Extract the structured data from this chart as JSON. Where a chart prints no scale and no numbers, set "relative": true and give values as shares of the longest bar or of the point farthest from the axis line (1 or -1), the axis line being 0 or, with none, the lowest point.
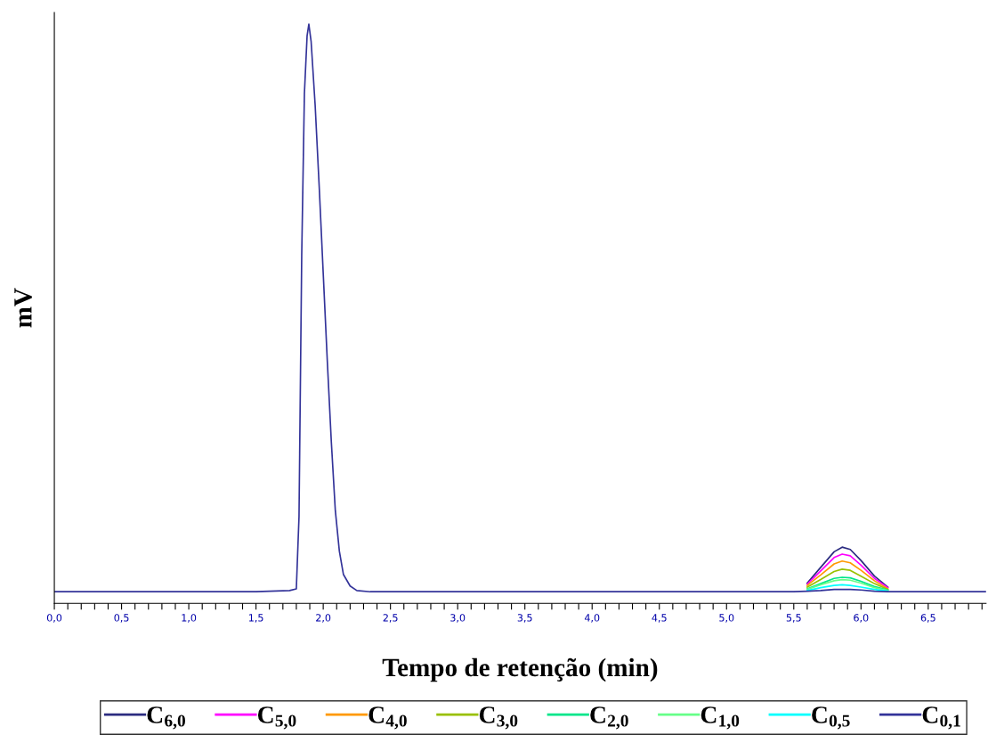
{
  "chart_data": {
    "type": "line",
    "relative": true,
    "xlabel": "Tempo de retenção (min)",
    "ylabel": "mV",
    "x": [
      0,
      1.5,
      1.75,
      1.8,
      1.82,
      1.84,
      1.86,
      1.88,
      1.893,
      1.91,
      1.94,
      1.97,
      2.0,
      2.03,
      2.06,
      2.09,
      2.12,
      2.15,
      2.2,
      2.25,
      2.35,
      2.5,
      5.0,
      5.5,
      5.6,
      5.7,
      5.8,
      5.86,
      5.92,
      6.0,
      6.1,
      6.2,
      6.3,
      6.93
    ],
    "xlim": [
      0,
      6.93
    ],
    "xticks": [
      {
        "value": 0,
        "label": "0,0"
      },
      {
        "value": 0.1,
        "label": null
      },
      {
        "value": 0.2,
        "label": null
      },
      {
        "value": 0.3,
        "label": null
      },
      {
        "value": 0.4,
        "label": null
      },
      {
        "value": 0.5,
        "label": "0,5"
      },
      {
        "value": 0.6,
        "label": null
      },
      {
        "value": 0.7,
        "label": null
      },
      {
        "value": 0.8,
        "label": null
      },
      {
        "value": 0.9,
        "label": null
      },
      {
        "value": 1.0,
        "label": "1,0"
      },
      {
        "value": 1.1,
        "label": null
      },
      {
        "value": 1.2,
        "label": null
      },
      {
        "value": 1.3,
        "label": null
      },
      {
        "value": 1.4,
        "label": null
      },
      {
        "value": 1.5,
        "label": "1,5"
      },
      {
        "value": 1.6,
        "label": null
      },
      {
        "value": 1.7,
        "label": null
      },
      {
        "value": 1.8,
        "label": null
      },
      {
        "value": 1.9,
        "label": null
      },
      {
        "value": 2.0,
        "label": "2,0"
      },
      {
        "value": 2.1,
        "label": null
      },
      {
        "value": 2.2,
        "label": null
      },
      {
        "value": 2.3,
        "label": null
      },
      {
        "value": 2.4,
        "label": null
      },
      {
        "value": 2.5,
        "label": "2,5"
      },
      {
        "value": 2.6,
        "label": null
      },
      {
        "value": 2.7,
        "label": null
      },
      {
        "value": 2.8,
        "label": null
      },
      {
        "value": 2.9,
        "label": null
      },
      {
        "value": 3.0,
        "label": "3,0"
      },
      {
        "value": 3.1,
        "label": null
      },
      {
        "value": 3.2,
        "label": null
      },
      {
        "value": 3.3,
        "label": null
      },
      {
        "value": 3.4,
        "label": null
      },
      {
        "value": 3.5,
        "label": "3,5"
      },
      {
        "value": 3.6,
        "label": null
      },
      {
        "value": 3.7,
        "label": null
      },
      {
        "value": 3.8,
        "label": null
      },
      {
        "value": 3.9,
        "label": null
      },
      {
        "value": 4.0,
        "label": "4,0"
      },
      {
        "value": 4.1,
        "label": null
      },
      {
        "value": 4.2,
        "label": null
      },
      {
        "value": 4.3,
        "label": null
      },
      {
        "value": 4.4,
        "label": null
      },
      {
        "value": 4.5,
        "label": "4,5"
      },
      {
        "value": 4.6,
        "label": null
      },
      {
        "value": 4.7,
        "label": null
      },
      {
        "value": 4.8,
        "label": null
      },
      {
        "value": 4.9,
        "label": null
      },
      {
        "value": 5.0,
        "label": "5,0"
      },
      {
        "value": 5.1,
        "label": null
      },
      {
        "value": 5.2,
        "label": null
      },
      {
        "value": 5.3,
        "label": null
      },
      {
        "value": 5.4,
        "label": null
      },
      {
        "value": 5.5,
        "label": "5,5"
      },
      {
        "value": 5.6,
        "label": null
      },
      {
        "value": 5.7,
        "label": null
      },
      {
        "value": 5.8,
        "label": null
      },
      {
        "value": 5.9,
        "label": null
      },
      {
        "value": 6.0,
        "label": "6,0"
      },
      {
        "value": 6.1,
        "label": null
      },
      {
        "value": 6.2,
        "label": null
      },
      {
        "value": 6.3,
        "label": null
      },
      {
        "value": 6.4,
        "label": null
      },
      {
        "value": 6.5,
        "label": "6,5"
      },
      {
        "value": 6.6,
        "label": null
      },
      {
        "value": 6.7,
        "label": null
      },
      {
        "value": 6.8,
        "label": null
      },
      {
        "value": 6.9,
        "label": null
      }
    ],
    "grid": false,
    "legend": "bottom",
    "marker": "none",
    "line_style": "solid",
    "series": [
      {
        "name": "C$_{6,0}$",
        "color": "#2b2b80",
        "values": [
          null,
          null,
          null,
          null,
          null,
          null,
          null,
          null,
          null,
          null,
          null,
          null,
          null,
          null,
          null,
          null,
          null,
          null,
          null,
          null,
          null,
          null,
          null,
          null,
          0.035,
          0.062,
          0.089,
          0.097,
          0.093,
          0.074,
          0.047,
          0.028,
          null,
          null
        ]
      },
      {
        "name": "C$_{5,0}$",
        "color": "#ff00ff",
        "values": [
          null,
          null,
          null,
          null,
          null,
          null,
          null,
          null,
          null,
          null,
          null,
          null,
          null,
          null,
          null,
          null,
          null,
          null,
          null,
          null,
          null,
          null,
          null,
          null,
          0.033,
          0.056,
          0.079,
          0.085,
          0.082,
          0.066,
          0.043,
          0.027,
          null,
          null
        ]
      },
      {
        "name": "C$_{4,0}$",
        "color": "#ff9900",
        "values": [
          null,
          null,
          null,
          null,
          null,
          null,
          null,
          null,
          null,
          null,
          null,
          null,
          null,
          null,
          null,
          null,
          null,
          null,
          null,
          null,
          null,
          null,
          null,
          null,
          0.031,
          0.049,
          0.068,
          0.073,
          0.07,
          0.057,
          0.039,
          0.025,
          null,
          null
        ]
      },
      {
        "name": "C$_{3,0}$",
        "color": "#99c000",
        "values": [
          null,
          null,
          null,
          null,
          null,
          null,
          null,
          null,
          null,
          null,
          null,
          null,
          null,
          null,
          null,
          null,
          null,
          null,
          null,
          null,
          null,
          null,
          null,
          null,
          0.028,
          0.041,
          0.055,
          0.059,
          0.057,
          0.047,
          0.034,
          0.024,
          null,
          null
        ]
      },
      {
        "name": "C$_{2,0}$",
        "color": "#00e68a",
        "values": [
          null,
          null,
          null,
          null,
          null,
          null,
          null,
          null,
          null,
          null,
          null,
          null,
          null,
          null,
          null,
          null,
          null,
          null,
          null,
          null,
          null,
          null,
          null,
          null,
          0.025,
          0.034,
          0.043,
          0.045,
          0.044,
          0.038,
          0.029,
          0.023,
          null,
          null
        ]
      },
      {
        "name": "C$_{1,0}$",
        "color": "#66ff88",
        "values": [
          null,
          null,
          null,
          null,
          null,
          null,
          null,
          null,
          null,
          null,
          null,
          null,
          null,
          null,
          null,
          null,
          null,
          null,
          null,
          null,
          null,
          null,
          null,
          null,
          0.024,
          0.032,
          0.039,
          0.041,
          0.04,
          0.035,
          0.027,
          0.022,
          null,
          null
        ]
      },
      {
        "name": "C$_{0,5}$",
        "color": "#00ffff",
        "values": [
          null,
          null,
          null,
          null,
          null,
          null,
          null,
          null,
          null,
          null,
          null,
          null,
          null,
          null,
          null,
          null,
          null,
          null,
          null,
          null,
          null,
          null,
          null,
          null,
          0.022,
          0.027,
          0.031,
          0.032,
          0.031,
          0.028,
          0.024,
          0.021,
          null,
          null
        ]
      },
      {
        "name": "C$_{0,1}$",
        "color": "#333399",
        "values": [
          0.02,
          0.02,
          0.022,
          0.025,
          0.15,
          0.6,
          0.88,
          0.98,
          1.0,
          0.97,
          0.86,
          0.72,
          0.57,
          0.42,
          0.28,
          0.16,
          0.09,
          0.05,
          0.03,
          0.022,
          0.02,
          0.02,
          0.02,
          0.02,
          0.021,
          0.022,
          0.024,
          0.024,
          0.024,
          0.023,
          0.021,
          0.02,
          0.02,
          0.02
        ]
      }
    ]
  }
}
